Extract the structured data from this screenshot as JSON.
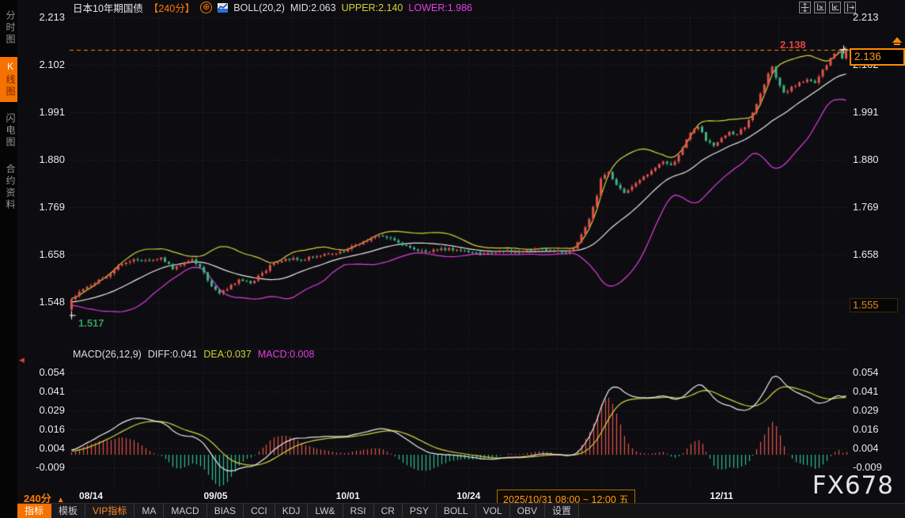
{
  "sidebar": {
    "tabs": [
      {
        "label": "分时图",
        "selected": false
      },
      {
        "label": "K线图",
        "selected": true
      },
      {
        "label": "闪电图",
        "selected": false
      },
      {
        "label": "合约资料",
        "selected": false
      }
    ]
  },
  "header": {
    "title": "日本10年期国债",
    "period_tag": "【240分】",
    "circle_plus_icon": "⊕",
    "indicator_label": "BOLL(20,2)",
    "mid_label": "MID:2.063",
    "upper_label": "UPPER:2.140",
    "lower_label": "LOWER:1.986"
  },
  "top_right_icons": [
    "move-crosshair-icon",
    "zoom-in-x-icon",
    "zoom-out-x-icon",
    "shift-right-icon"
  ],
  "annotations": {
    "high_line_label": "2.138",
    "last_price_label": "2.136",
    "low_point_label": "1.517",
    "right_axis_low_label": "1.555"
  },
  "macd_header": {
    "name": "MACD(26,12,9)",
    "diff": "DIFF:0.041",
    "dea": "DEA:0.037",
    "macd": "MACD:0.008"
  },
  "x_axis": {
    "period_label": "240分",
    "period_arrow": "▲",
    "crosshair_label": "2025/10/31 08:00 ~ 12:00 五",
    "date_labels": [
      {
        "label": "08/14",
        "index": 5
      },
      {
        "label": "09/05",
        "index": 37
      },
      {
        "label": "10/01",
        "index": 71
      },
      {
        "label": "10/24",
        "index": 102
      },
      {
        "label": "12/11",
        "index": 167
      }
    ]
  },
  "toolbar": {
    "items": [
      {
        "label": "指标",
        "selected": true
      },
      {
        "label": "模板"
      },
      {
        "label": "VIP指标",
        "accent": true
      },
      {
        "label": "MA"
      },
      {
        "label": "MACD"
      },
      {
        "label": "BIAS"
      },
      {
        "label": "CCI"
      },
      {
        "label": "KDJ"
      },
      {
        "label": "LW&"
      },
      {
        "label": "RSI"
      },
      {
        "label": "CR"
      },
      {
        "label": "PSY"
      },
      {
        "label": "BOLL"
      },
      {
        "label": "VOL"
      },
      {
        "label": "OBV"
      },
      {
        "label": "设置"
      }
    ]
  },
  "watermark": "FX678",
  "colors": {
    "background": "#0d0d11",
    "accent_orange": "#ff7a00",
    "up_red": "#e5534b",
    "down_green": "#3cb586",
    "boll_upper_yellow": "#d4d43e",
    "boll_mid_white": "#eaeaea",
    "boll_lower_magenta": "#e03ce0",
    "macd_bar_up": "#e5534b",
    "macd_bar_down": "#2fbf8f",
    "grid": "#2e2e36",
    "high_dashed_line": "#ff8a00"
  },
  "chart_data": {
    "type": "candlestick",
    "title": "日本10年期国债 240分 K线 + BOLL(20,2) + MACD(26,12,9)",
    "n_candles": 200,
    "price_range": {
      "max": 2.213,
      "min": 1.548
    },
    "price_ticks": [
      {
        "label": "2.213",
        "v": 2.213
      },
      {
        "label": "2.102",
        "v": 2.102
      },
      {
        "label": "1.991",
        "v": 1.991
      },
      {
        "label": "1.880",
        "v": 1.88
      },
      {
        "label": "1.769",
        "v": 1.769
      },
      {
        "label": "1.658",
        "v": 1.658
      },
      {
        "label": "1.548",
        "v": 1.548
      }
    ],
    "macd_ticks": [
      {
        "label": "0.054",
        "v": 0.054
      },
      {
        "label": "0.041",
        "v": 0.0415
      },
      {
        "label": "0.029",
        "v": 0.029
      },
      {
        "label": "0.016",
        "v": 0.0165
      },
      {
        "label": "0.004",
        "v": 0.004
      },
      {
        "label": "-0.009",
        "v": -0.0085
      }
    ],
    "indicators": {
      "boll": {
        "period": 20,
        "dev": 2,
        "mid": 2.063,
        "upper": 2.14,
        "lower": 1.986
      },
      "macd": {
        "fast": 12,
        "slow": 26,
        "signal": 9,
        "diff": 0.041,
        "dea": 0.037,
        "macd": 0.008
      }
    },
    "first_open": 1.53,
    "low_marker": {
      "index": 0,
      "price": 1.517
    },
    "high_marker": {
      "price": 2.138
    },
    "last_close": 2.136,
    "wiggle_amp": 0.004,
    "close_keyframes": [
      [
        0,
        1.555
      ],
      [
        3,
        1.578
      ],
      [
        6,
        1.592
      ],
      [
        9,
        1.607
      ],
      [
        12,
        1.634
      ],
      [
        16,
        1.648
      ],
      [
        20,
        1.645
      ],
      [
        23,
        1.652
      ],
      [
        26,
        1.625
      ],
      [
        29,
        1.641
      ],
      [
        31,
        1.648
      ],
      [
        33,
        1.63
      ],
      [
        36,
        1.585
      ],
      [
        38,
        1.568
      ],
      [
        40,
        1.578
      ],
      [
        43,
        1.601
      ],
      [
        46,
        1.592
      ],
      [
        49,
        1.616
      ],
      [
        52,
        1.64
      ],
      [
        55,
        1.649
      ],
      [
        59,
        1.646
      ],
      [
        63,
        1.655
      ],
      [
        67,
        1.661
      ],
      [
        70,
        1.666
      ],
      [
        73,
        1.682
      ],
      [
        76,
        1.691
      ],
      [
        79,
        1.703
      ],
      [
        82,
        1.697
      ],
      [
        85,
        1.681
      ],
      [
        88,
        1.671
      ],
      [
        91,
        1.665
      ],
      [
        94,
        1.669
      ],
      [
        97,
        1.674
      ],
      [
        100,
        1.668
      ],
      [
        103,
        1.664
      ],
      [
        106,
        1.661
      ],
      [
        109,
        1.664
      ],
      [
        112,
        1.669
      ],
      [
        115,
        1.664
      ],
      [
        118,
        1.669
      ],
      [
        121,
        1.673
      ],
      [
        124,
        1.666
      ],
      [
        127,
        1.663
      ],
      [
        129,
        1.673
      ],
      [
        131,
        1.706
      ],
      [
        133,
        1.742
      ],
      [
        135,
        1.796
      ],
      [
        136,
        1.836
      ],
      [
        138,
        1.852
      ],
      [
        140,
        1.822
      ],
      [
        142,
        1.803
      ],
      [
        144,
        1.818
      ],
      [
        146,
        1.833
      ],
      [
        148,
        1.846
      ],
      [
        150,
        1.862
      ],
      [
        152,
        1.876
      ],
      [
        154,
        1.868
      ],
      [
        156,
        1.892
      ],
      [
        158,
        1.928
      ],
      [
        160,
        1.952
      ],
      [
        161,
        1.958
      ],
      [
        163,
        1.925
      ],
      [
        165,
        1.913
      ],
      [
        167,
        1.931
      ],
      [
        169,
        1.946
      ],
      [
        171,
        1.94
      ],
      [
        173,
        1.956
      ],
      [
        175,
        1.99
      ],
      [
        177,
        2.035
      ],
      [
        179,
        2.082
      ],
      [
        180,
        2.098
      ],
      [
        181,
        2.072
      ],
      [
        183,
        2.038
      ],
      [
        185,
        2.051
      ],
      [
        187,
        2.061
      ],
      [
        189,
        2.068
      ],
      [
        191,
        2.06
      ],
      [
        193,
        2.091
      ],
      [
        195,
        2.118
      ],
      [
        196,
        2.128
      ],
      [
        197,
        2.132
      ],
      [
        198,
        2.117
      ],
      [
        199,
        2.136
      ]
    ]
  }
}
